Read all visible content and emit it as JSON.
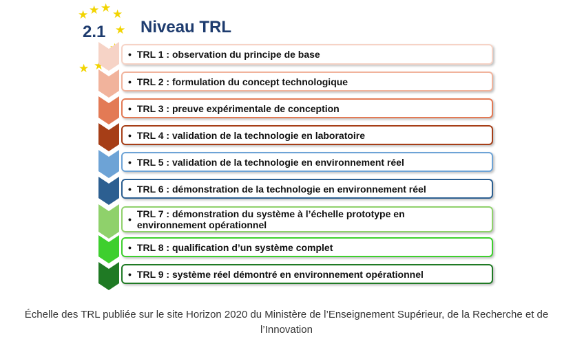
{
  "figure": {
    "section_number": "2.1",
    "section_title": "Niveau TRL",
    "levels": [
      {
        "text": "TRL 1 : observation du principe de base",
        "color": "#f6d3c6"
      },
      {
        "text": "TRL 2 : formulation du concept technologique",
        "color": "#f1b39c"
      },
      {
        "text": "TRL 3 : preuve expérimentale de conception",
        "color": "#e37a55"
      },
      {
        "text": "TRL 4 : validation de la technologie en laboratoire",
        "color": "#a63e17"
      },
      {
        "text": "TRL 5 : validation de la technologie en environnement réel",
        "color": "#6da3d6"
      },
      {
        "text": "TRL 6 : démonstration de la technologie en environnement réel",
        "color": "#2c5f91"
      },
      {
        "text": "TRL 7 : démonstration du système à l’échelle prototype en environnement opérationnel",
        "color": "#8fd16b"
      },
      {
        "text": "TRL 8 : qualification d’un système complet",
        "color": "#3ecf2e"
      },
      {
        "text": "TRL 9 : système réel démontré en environnement opérationnel",
        "color": "#1f7a24"
      }
    ]
  },
  "caption": "Échelle des TRL publiée sur le site Horizon 2020 du Ministère de l’Enseignement Supérieur, de la Recherche et de l’Innovation"
}
